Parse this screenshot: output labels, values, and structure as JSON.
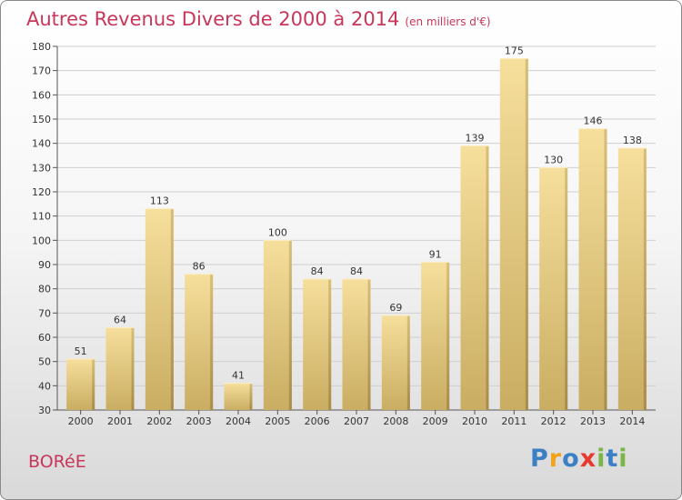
{
  "header": {
    "title": "Autres Revenus Divers de 2000 à 2014",
    "unit": "(en milliers d'€)"
  },
  "footer": {
    "commune": "BORéE",
    "logo": [
      "P",
      "r",
      "o",
      "x",
      "i",
      "t",
      "i"
    ],
    "logo_colors": [
      "#3b7fc4",
      "#f2a31b",
      "#3b7fc4",
      "#e8392f",
      "#7ab648",
      "#3b7fc4",
      "#7ab648"
    ]
  },
  "chart_data": {
    "type": "bar",
    "title": "Autres Revenus Divers de 2000 à 2014",
    "subtitle": "(en milliers d'€)",
    "xlabel": "",
    "ylabel": "",
    "categories": [
      "2000",
      "2001",
      "2002",
      "2003",
      "2004",
      "2005",
      "2006",
      "2007",
      "2008",
      "2009",
      "2010",
      "2011",
      "2012",
      "2013",
      "2014"
    ],
    "values": [
      51,
      64,
      113,
      86,
      41,
      100,
      84,
      84,
      69,
      91,
      139,
      175,
      130,
      146,
      138
    ],
    "ylim": [
      30,
      180
    ],
    "yticks": [
      30,
      40,
      50,
      60,
      70,
      80,
      90,
      100,
      110,
      120,
      130,
      140,
      150,
      160,
      170,
      180
    ],
    "grid": true,
    "bar_color": "#e8cf87"
  }
}
